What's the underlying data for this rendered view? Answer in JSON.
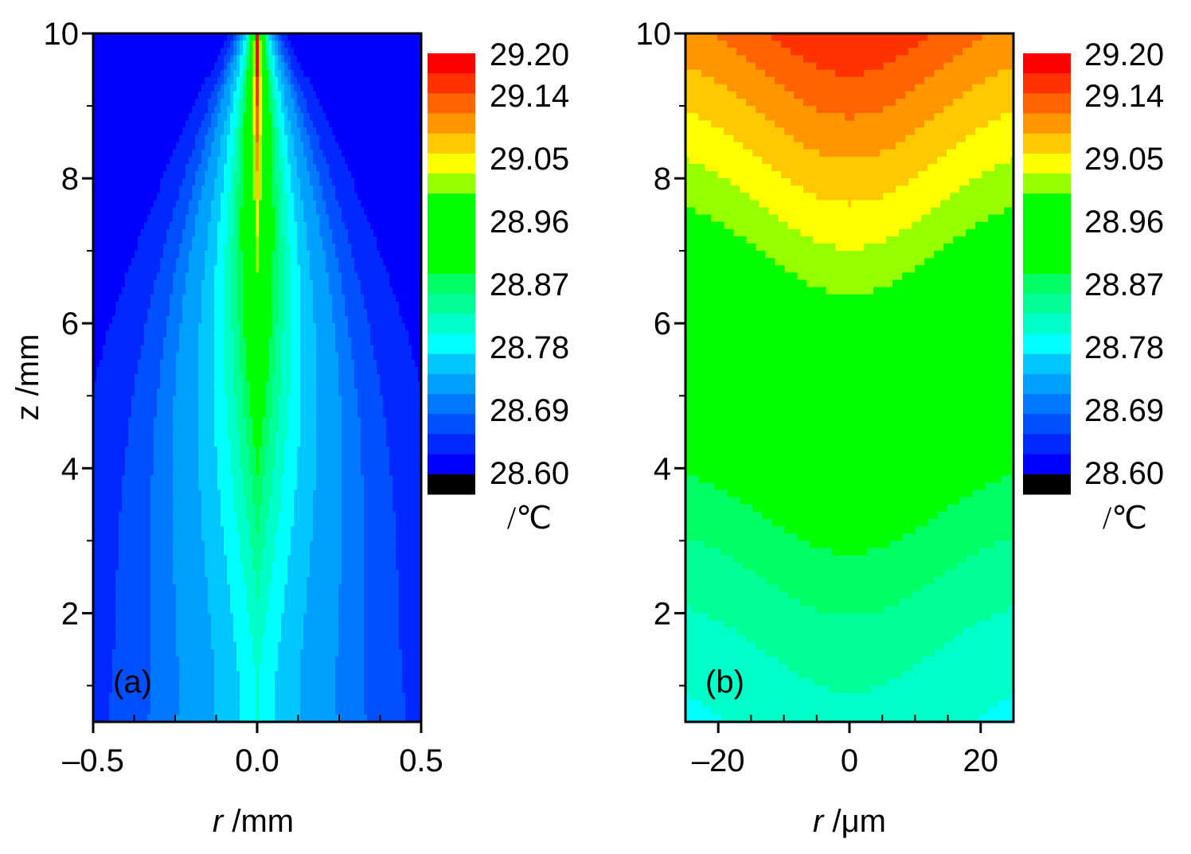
{
  "chart_data": [
    {
      "type": "contour",
      "panel": "(a)",
      "title": "",
      "xlabel_var": "r",
      "xlabel_unit": " /mm",
      "ylabel": "z /mm",
      "xlim": [
        -0.5,
        0.5
      ],
      "ylim": [
        0.5,
        10
      ],
      "xticks": [
        -0.5,
        0.0,
        0.5
      ],
      "xtick_labels": [
        "–0.5",
        "0.0",
        "0.5"
      ],
      "yticks": [
        2,
        4,
        6,
        8,
        10
      ],
      "ytick_labels": [
        "2",
        "4",
        "6",
        "8",
        "10"
      ],
      "field": {
        "description_model": "narrow hot core along r=0, temperature rising toward z=10",
        "core_peak_value": 29.2,
        "min_value": 28.6
      },
      "colorbar": {
        "unit": "/℃",
        "tick_labels": [
          "29.20",
          "29.14",
          "29.05",
          "28.96",
          "28.87",
          "28.78",
          "28.69",
          "28.60"
        ],
        "tick_values": [
          29.2,
          29.14,
          29.05,
          28.96,
          28.87,
          28.78,
          28.69,
          28.6
        ]
      }
    },
    {
      "type": "contour",
      "panel": "(b)",
      "title": "",
      "xlabel_var": "r",
      "xlabel_unit": " /μm",
      "ylabel": "",
      "xlim": [
        -25,
        25
      ],
      "ylim": [
        0.5,
        10
      ],
      "xticks": [
        -20,
        0,
        20
      ],
      "xtick_labels": [
        "–20",
        "0",
        "20"
      ],
      "yticks": [
        2,
        4,
        6,
        8,
        10
      ],
      "ytick_labels": [
        "2",
        "4",
        "6",
        "8",
        "10"
      ],
      "field": {
        "description_model": "temperature increases with z, slightly higher near r=0",
        "top_center_value": 29.16,
        "bottom_edge_value": 28.75
      },
      "colorbar": {
        "unit": "/℃",
        "tick_labels": [
          "29.20",
          "29.14",
          "29.05",
          "28.96",
          "28.87",
          "28.78",
          "28.69",
          "28.60"
        ],
        "tick_values": [
          29.2,
          29.14,
          29.05,
          28.96,
          28.87,
          28.78,
          28.69,
          28.6
        ]
      }
    }
  ],
  "colors": {
    "levels": [
      "#000000",
      "#0000ff",
      "#0028ff",
      "#0050ff",
      "#0078ff",
      "#00a0ff",
      "#00c8ff",
      "#00ffff",
      "#00ffc8",
      "#00ff96",
      "#00ff64",
      "#00ff00",
      "#00ff00",
      "#00ff00",
      "#00ff00",
      "#96ff00",
      "#ffff00",
      "#ffc800",
      "#ff9600",
      "#ff6400",
      "#ff3200",
      "#ff0000"
    ],
    "level_values": [
      28.585,
      28.6,
      28.615,
      28.63,
      28.645,
      28.66,
      28.69,
      28.72,
      28.75,
      28.78,
      28.81,
      28.84,
      28.87,
      28.9,
      28.93,
      28.99,
      29.02,
      29.05,
      29.08,
      29.11,
      29.14,
      29.17
    ]
  }
}
